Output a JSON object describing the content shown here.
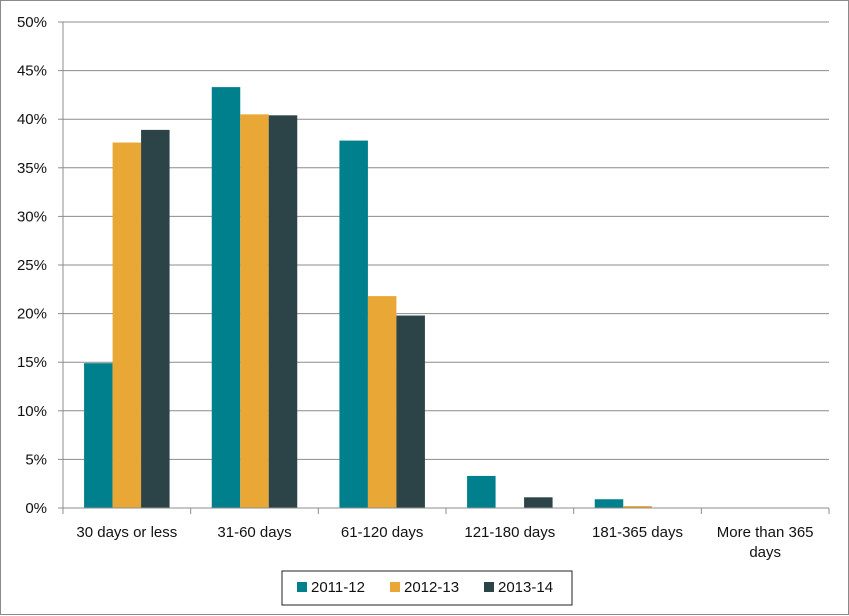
{
  "chart_data": {
    "type": "bar",
    "categories": [
      [
        "30 days or less"
      ],
      [
        "31-60 days"
      ],
      [
        "61-120 days"
      ],
      [
        "121-180 days"
      ],
      [
        "181-365 days"
      ],
      [
        "More than 365",
        "days"
      ]
    ],
    "series": [
      {
        "name": "2011-12",
        "color": "#00808c",
        "values": [
          14.9,
          43.3,
          37.8,
          3.3,
          0.9,
          0
        ]
      },
      {
        "name": "2012-13",
        "color": "#e9a835",
        "values": [
          37.6,
          40.5,
          21.8,
          0,
          0.2,
          0
        ]
      },
      {
        "name": "2013-14",
        "color": "#2c4347",
        "values": [
          38.9,
          40.4,
          19.8,
          1.1,
          0,
          0
        ]
      }
    ],
    "y_ticks": [
      "0%",
      "5%",
      "10%",
      "15%",
      "20%",
      "25%",
      "30%",
      "35%",
      "40%",
      "45%",
      "50%"
    ],
    "ylim": [
      0,
      50
    ],
    "y_step": 5,
    "grid": true,
    "legend_position": "bottom"
  }
}
